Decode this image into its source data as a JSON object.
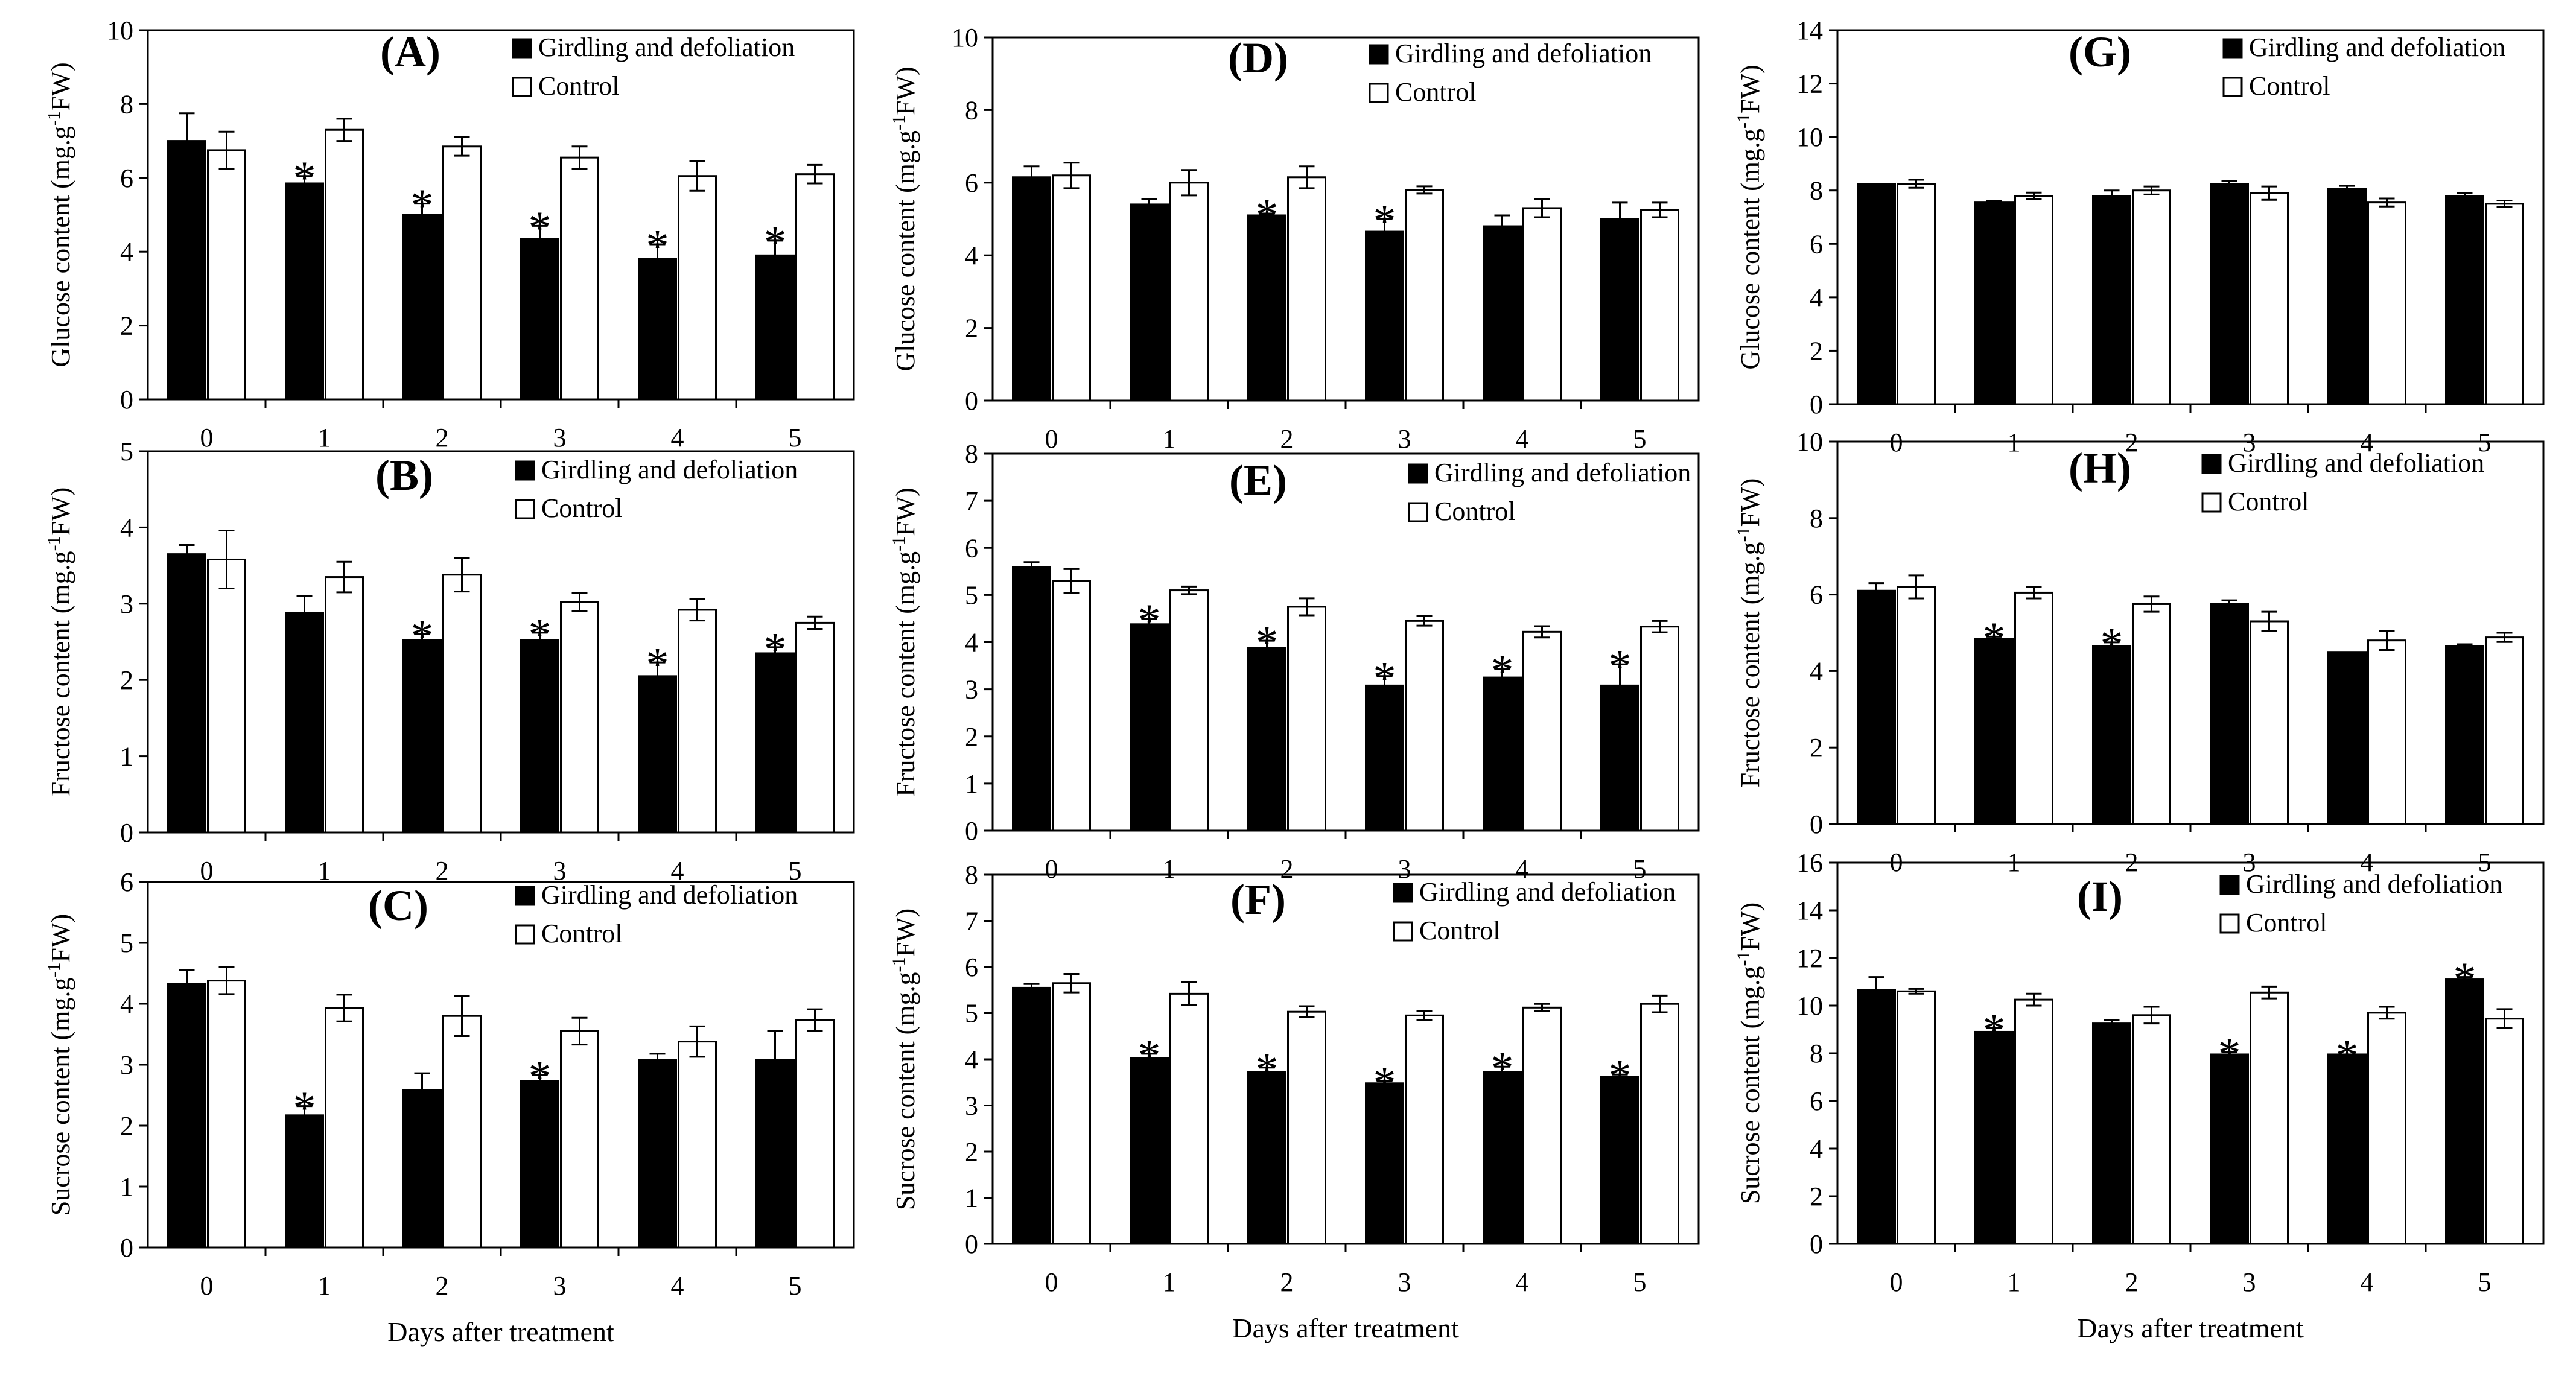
{
  "figure": {
    "legend": {
      "treatment": "Girdling and defoliation",
      "control": "Control"
    },
    "colors": {
      "treatment": "#000000",
      "control": "#ffffff",
      "axis": "#000000"
    }
  },
  "chart_data": [
    {
      "id": "A",
      "type": "bar",
      "title": "(A)",
      "ylabel": "Glucose content (mg.g-1FW)",
      "ylim": [
        0,
        10
      ],
      "yticks": [
        0,
        2,
        4,
        6,
        8,
        10
      ],
      "categories": [
        "0",
        "1",
        "2",
        "3",
        "4",
        "5"
      ],
      "xlabel": "",
      "series": [
        {
          "name": "Girdling and defoliation",
          "values": [
            7.0,
            5.85,
            5.0,
            4.35,
            3.8,
            3.9
          ],
          "errors": [
            0.75,
            0.2,
            0.3,
            0.35,
            0.4,
            0.4
          ]
        },
        {
          "name": "Control",
          "values": [
            6.75,
            7.3,
            6.85,
            6.55,
            6.05,
            6.1
          ],
          "errors": [
            0.5,
            0.3,
            0.25,
            0.3,
            0.4,
            0.25
          ]
        }
      ],
      "significance": [
        "",
        "*",
        "*",
        "*",
        "*",
        "*"
      ]
    },
    {
      "id": "B",
      "type": "bar",
      "title": "(B)",
      "ylabel": "Fructose content (mg.g-1FW)",
      "ylim": [
        0,
        5
      ],
      "yticks": [
        0,
        1,
        2,
        3,
        4,
        5
      ],
      "categories": [
        "0",
        "1",
        "2",
        "3",
        "4",
        "5"
      ],
      "xlabel": "",
      "series": [
        {
          "name": "Girdling and defoliation",
          "values": [
            3.65,
            2.88,
            2.52,
            2.52,
            2.05,
            2.35
          ],
          "errors": [
            0.12,
            0.22,
            0.08,
            0.1,
            0.18,
            0.08
          ]
        },
        {
          "name": "Control",
          "values": [
            3.58,
            3.35,
            3.38,
            3.02,
            2.92,
            2.75
          ],
          "errors": [
            0.38,
            0.2,
            0.22,
            0.12,
            0.14,
            0.08
          ]
        }
      ],
      "significance": [
        "",
        "",
        "*",
        "*",
        "*",
        "*"
      ]
    },
    {
      "id": "C",
      "type": "bar",
      "title": "(C)",
      "ylabel": "Sucrose content (mg.g-1FW)",
      "ylim": [
        0,
        6
      ],
      "yticks": [
        0,
        1,
        2,
        3,
        4,
        5,
        6
      ],
      "categories": [
        "0",
        "1",
        "2",
        "3",
        "4",
        "5"
      ],
      "xlabel": "Days after treatment",
      "series": [
        {
          "name": "Girdling and defoliation",
          "values": [
            4.33,
            2.17,
            2.58,
            2.73,
            3.08,
            3.08
          ],
          "errors": [
            0.22,
            0.15,
            0.28,
            0.1,
            0.1,
            0.47
          ]
        },
        {
          "name": "Control",
          "values": [
            4.38,
            3.93,
            3.8,
            3.55,
            3.38,
            3.73
          ],
          "errors": [
            0.22,
            0.22,
            0.33,
            0.22,
            0.25,
            0.18
          ]
        }
      ],
      "significance": [
        "",
        "*",
        "",
        "*",
        "",
        ""
      ]
    },
    {
      "id": "D",
      "type": "bar",
      "title": "(D)",
      "ylabel": "Glucose content (mg.g-1FW)",
      "ylim": [
        0,
        10
      ],
      "yticks": [
        0,
        2,
        4,
        6,
        8,
        10
      ],
      "categories": [
        "0",
        "1",
        "2",
        "3",
        "4",
        "5"
      ],
      "xlabel": "",
      "series": [
        {
          "name": "Girdling and defoliation",
          "values": [
            6.15,
            5.4,
            5.1,
            4.65,
            4.8,
            5.0
          ],
          "errors": [
            0.3,
            0.15,
            0.05,
            0.35,
            0.3,
            0.45
          ]
        },
        {
          "name": "Control",
          "values": [
            6.2,
            6.0,
            6.15,
            5.8,
            5.3,
            5.25
          ],
          "errors": [
            0.35,
            0.35,
            0.3,
            0.1,
            0.25,
            0.2
          ]
        }
      ],
      "significance": [
        "",
        "",
        "*",
        "*",
        "",
        ""
      ]
    },
    {
      "id": "E",
      "type": "bar",
      "title": "(E)",
      "ylabel": "Fructose content (mg.g-1FW)",
      "ylim": [
        0,
        8
      ],
      "yticks": [
        0,
        1,
        2,
        3,
        4,
        5,
        6,
        7,
        8
      ],
      "categories": [
        "0",
        "1",
        "2",
        "3",
        "4",
        "5"
      ],
      "xlabel": "",
      "series": [
        {
          "name": "Girdling and defoliation",
          "values": [
            5.6,
            4.38,
            3.88,
            3.08,
            3.25,
            3.08
          ],
          "errors": [
            0.1,
            0.12,
            0.15,
            0.2,
            0.18,
            0.45
          ]
        },
        {
          "name": "Control",
          "values": [
            5.3,
            5.1,
            4.75,
            4.45,
            4.22,
            4.33
          ],
          "errors": [
            0.25,
            0.08,
            0.18,
            0.1,
            0.12,
            0.12
          ]
        }
      ],
      "significance": [
        "",
        "*",
        "*",
        "*",
        "*",
        "*"
      ]
    },
    {
      "id": "F",
      "type": "bar",
      "title": "(F)",
      "ylabel": "Sucrose content (mg.g-1FW)",
      "ylim": [
        0,
        8
      ],
      "yticks": [
        0,
        1,
        2,
        3,
        4,
        5,
        6,
        7,
        8
      ],
      "categories": [
        "0",
        "1",
        "2",
        "3",
        "4",
        "5"
      ],
      "xlabel": "Days after treatment",
      "series": [
        {
          "name": "Girdling and defoliation",
          "values": [
            5.55,
            4.02,
            3.72,
            3.48,
            3.72,
            3.62
          ],
          "errors": [
            0.08,
            0.1,
            0.1,
            0.05,
            0.12,
            0.05
          ]
        },
        {
          "name": "Control",
          "values": [
            5.65,
            5.42,
            5.03,
            4.95,
            5.12,
            5.2
          ],
          "errors": [
            0.2,
            0.25,
            0.12,
            0.1,
            0.08,
            0.18
          ]
        }
      ],
      "significance": [
        "",
        "*",
        "*",
        "*",
        "*",
        "*"
      ]
    },
    {
      "id": "G",
      "type": "bar",
      "title": "(G)",
      "ylabel": "Glucose content (mg.g-1FW)",
      "ylim": [
        0,
        14
      ],
      "yticks": [
        0,
        2,
        4,
        6,
        8,
        10,
        12,
        14
      ],
      "categories": [
        "0",
        "1",
        "2",
        "3",
        "4",
        "5"
      ],
      "xlabel": "",
      "series": [
        {
          "name": "Girdling and defoliation",
          "values": [
            8.25,
            7.55,
            7.8,
            8.25,
            8.05,
            7.8
          ],
          "errors": [
            0.0,
            0.05,
            0.2,
            0.1,
            0.12,
            0.1
          ]
        },
        {
          "name": "Control",
          "values": [
            8.25,
            7.8,
            8.0,
            7.9,
            7.55,
            7.5
          ],
          "errors": [
            0.15,
            0.12,
            0.15,
            0.25,
            0.15,
            0.12
          ]
        }
      ],
      "significance": [
        "",
        "",
        "",
        "",
        "",
        ""
      ]
    },
    {
      "id": "H",
      "type": "bar",
      "title": "(H)",
      "ylabel": "Fructose content (mg.g-1FW)",
      "ylim": [
        0,
        10
      ],
      "yticks": [
        0,
        2,
        4,
        6,
        8,
        10
      ],
      "categories": [
        "0",
        "1",
        "2",
        "3",
        "4",
        "5"
      ],
      "xlabel": "",
      "series": [
        {
          "name": "Girdling and defoliation",
          "values": [
            6.1,
            4.85,
            4.65,
            5.75,
            4.5,
            4.65
          ],
          "errors": [
            0.2,
            0.05,
            0.1,
            0.1,
            0.0,
            0.05
          ]
        },
        {
          "name": "Control",
          "values": [
            6.2,
            6.05,
            5.75,
            5.3,
            4.8,
            4.88
          ],
          "errors": [
            0.3,
            0.15,
            0.2,
            0.25,
            0.25,
            0.12
          ]
        }
      ],
      "significance": [
        "",
        "*",
        "*",
        "",
        "",
        ""
      ]
    },
    {
      "id": "I",
      "type": "bar",
      "title": "(I)",
      "ylabel": "Sucrose content (mg.g-1FW)",
      "ylim": [
        0,
        16
      ],
      "yticks": [
        0,
        2,
        4,
        6,
        8,
        10,
        12,
        14,
        16
      ],
      "categories": [
        "0",
        "1",
        "2",
        "3",
        "4",
        "5"
      ],
      "xlabel": "Days after treatment",
      "series": [
        {
          "name": "Girdling and defoliation",
          "values": [
            10.65,
            8.9,
            9.25,
            7.95,
            7.95,
            11.1
          ],
          "errors": [
            0.55,
            0.15,
            0.15,
            0.1,
            0.0,
            0.1
          ]
        },
        {
          "name": "Control",
          "values": [
            10.6,
            10.25,
            9.6,
            10.55,
            9.7,
            9.45
          ],
          "errors": [
            0.1,
            0.25,
            0.35,
            0.25,
            0.25,
            0.4
          ]
        }
      ],
      "significance": [
        "",
        "*",
        "",
        "*",
        "*",
        "*"
      ]
    }
  ]
}
